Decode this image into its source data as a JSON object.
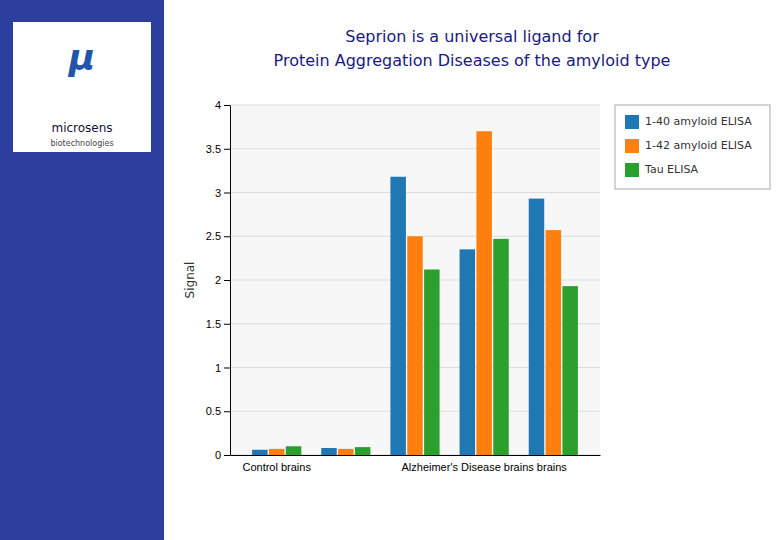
{
  "chart_data": {
    "type": "bar",
    "title": "Seprion is a universal ligand for\nProtein Aggregation Diseases of the amyloid type",
    "annotations": [
      "μ",
      "microsens",
      "biotechnologies"
    ],
    "ylabel": "Signal",
    "categories": [
      "Control brains",
      null,
      null,
      "Alzheimer's Disease brains brains",
      null
    ],
    "series": [
      {
        "name": "1-40 amyloid ELISA",
        "values": [
          0.06,
          0.08,
          3.18,
          2.35,
          2.93
        ]
      },
      {
        "name": "1-42 amyloid ELISA",
        "values": [
          0.07,
          0.07,
          2.5,
          3.7,
          2.57
        ]
      },
      {
        "name": "Tau ELISA",
        "values": [
          0.1,
          0.09,
          2.12,
          2.47,
          1.93
        ]
      }
    ],
    "ylim": [
      0,
      4
    ],
    "yticks": [
      0,
      0.5,
      1,
      1.5,
      2,
      2.5,
      3,
      3.5,
      4
    ],
    "grid": true,
    "legend": "right"
  }
}
